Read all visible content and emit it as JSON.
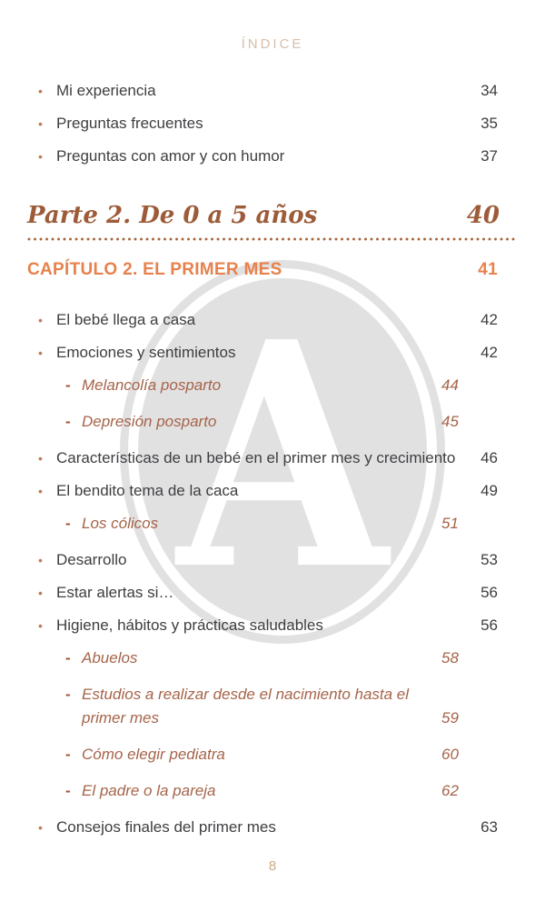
{
  "page": {
    "title": "ÍNDICE",
    "footer_page_number": "8",
    "watermark_letter": "A"
  },
  "icons": {
    "item_bullet": "•",
    "sub_dash": "-"
  },
  "colors": {
    "body_text": "#3e3d40",
    "sub_item_terracotta": "#a5644a",
    "bullet_dot": "#c07a57",
    "chapter_orange": "#e8814c",
    "part_brown": "#9d5c39",
    "title_tan": "#d6bfab",
    "footer_tan": "#cbaa85",
    "watermark_gray": "#e2e1e2"
  },
  "toc": {
    "top_items": [
      {
        "label": "Mi experiencia",
        "page": "34",
        "level": "item"
      },
      {
        "label": "Preguntas frecuentes",
        "page": "35",
        "level": "item"
      },
      {
        "label": "Preguntas con amor y con humor",
        "page": "37",
        "level": "item"
      }
    ],
    "part_heading": {
      "label": "Parte 2. De 0 a 5 años",
      "page": "40"
    },
    "chapter_heading": {
      "label": "CAPÍTULO 2. EL PRIMER MES",
      "page": "41"
    },
    "chapter_items": [
      {
        "label": "El bebé llega a casa",
        "page": "42",
        "level": "item"
      },
      {
        "label": "Emociones y sentimientos",
        "page": "42",
        "level": "item"
      },
      {
        "label": "Melancolía posparto",
        "page": "44",
        "level": "sub"
      },
      {
        "label": "Depresión posparto",
        "page": "45",
        "level": "sub"
      },
      {
        "label": "Características de un bebé en el primer mes y crecimiento",
        "page": "46",
        "level": "item"
      },
      {
        "label": "El bendito tema de la caca",
        "page": "49",
        "level": "item"
      },
      {
        "label": "Los cólicos",
        "page": "51",
        "level": "sub"
      },
      {
        "label": "Desarrollo",
        "page": "53",
        "level": "item"
      },
      {
        "label": "Estar alertas si…",
        "page": "56",
        "level": "item"
      },
      {
        "label": "Higiene, hábitos y prácticas saludables",
        "page": "56",
        "level": "item"
      },
      {
        "label": "Abuelos",
        "page": "58",
        "level": "sub"
      },
      {
        "label": "Estudios a realizar desde el nacimiento hasta el primer mes",
        "page": "59",
        "level": "sub"
      },
      {
        "label": "Cómo elegir pediatra",
        "page": "60",
        "level": "sub"
      },
      {
        "label": "El padre o la pareja",
        "page": "62",
        "level": "sub"
      },
      {
        "label": "Consejos finales del primer mes",
        "page": "63",
        "level": "item"
      }
    ]
  }
}
